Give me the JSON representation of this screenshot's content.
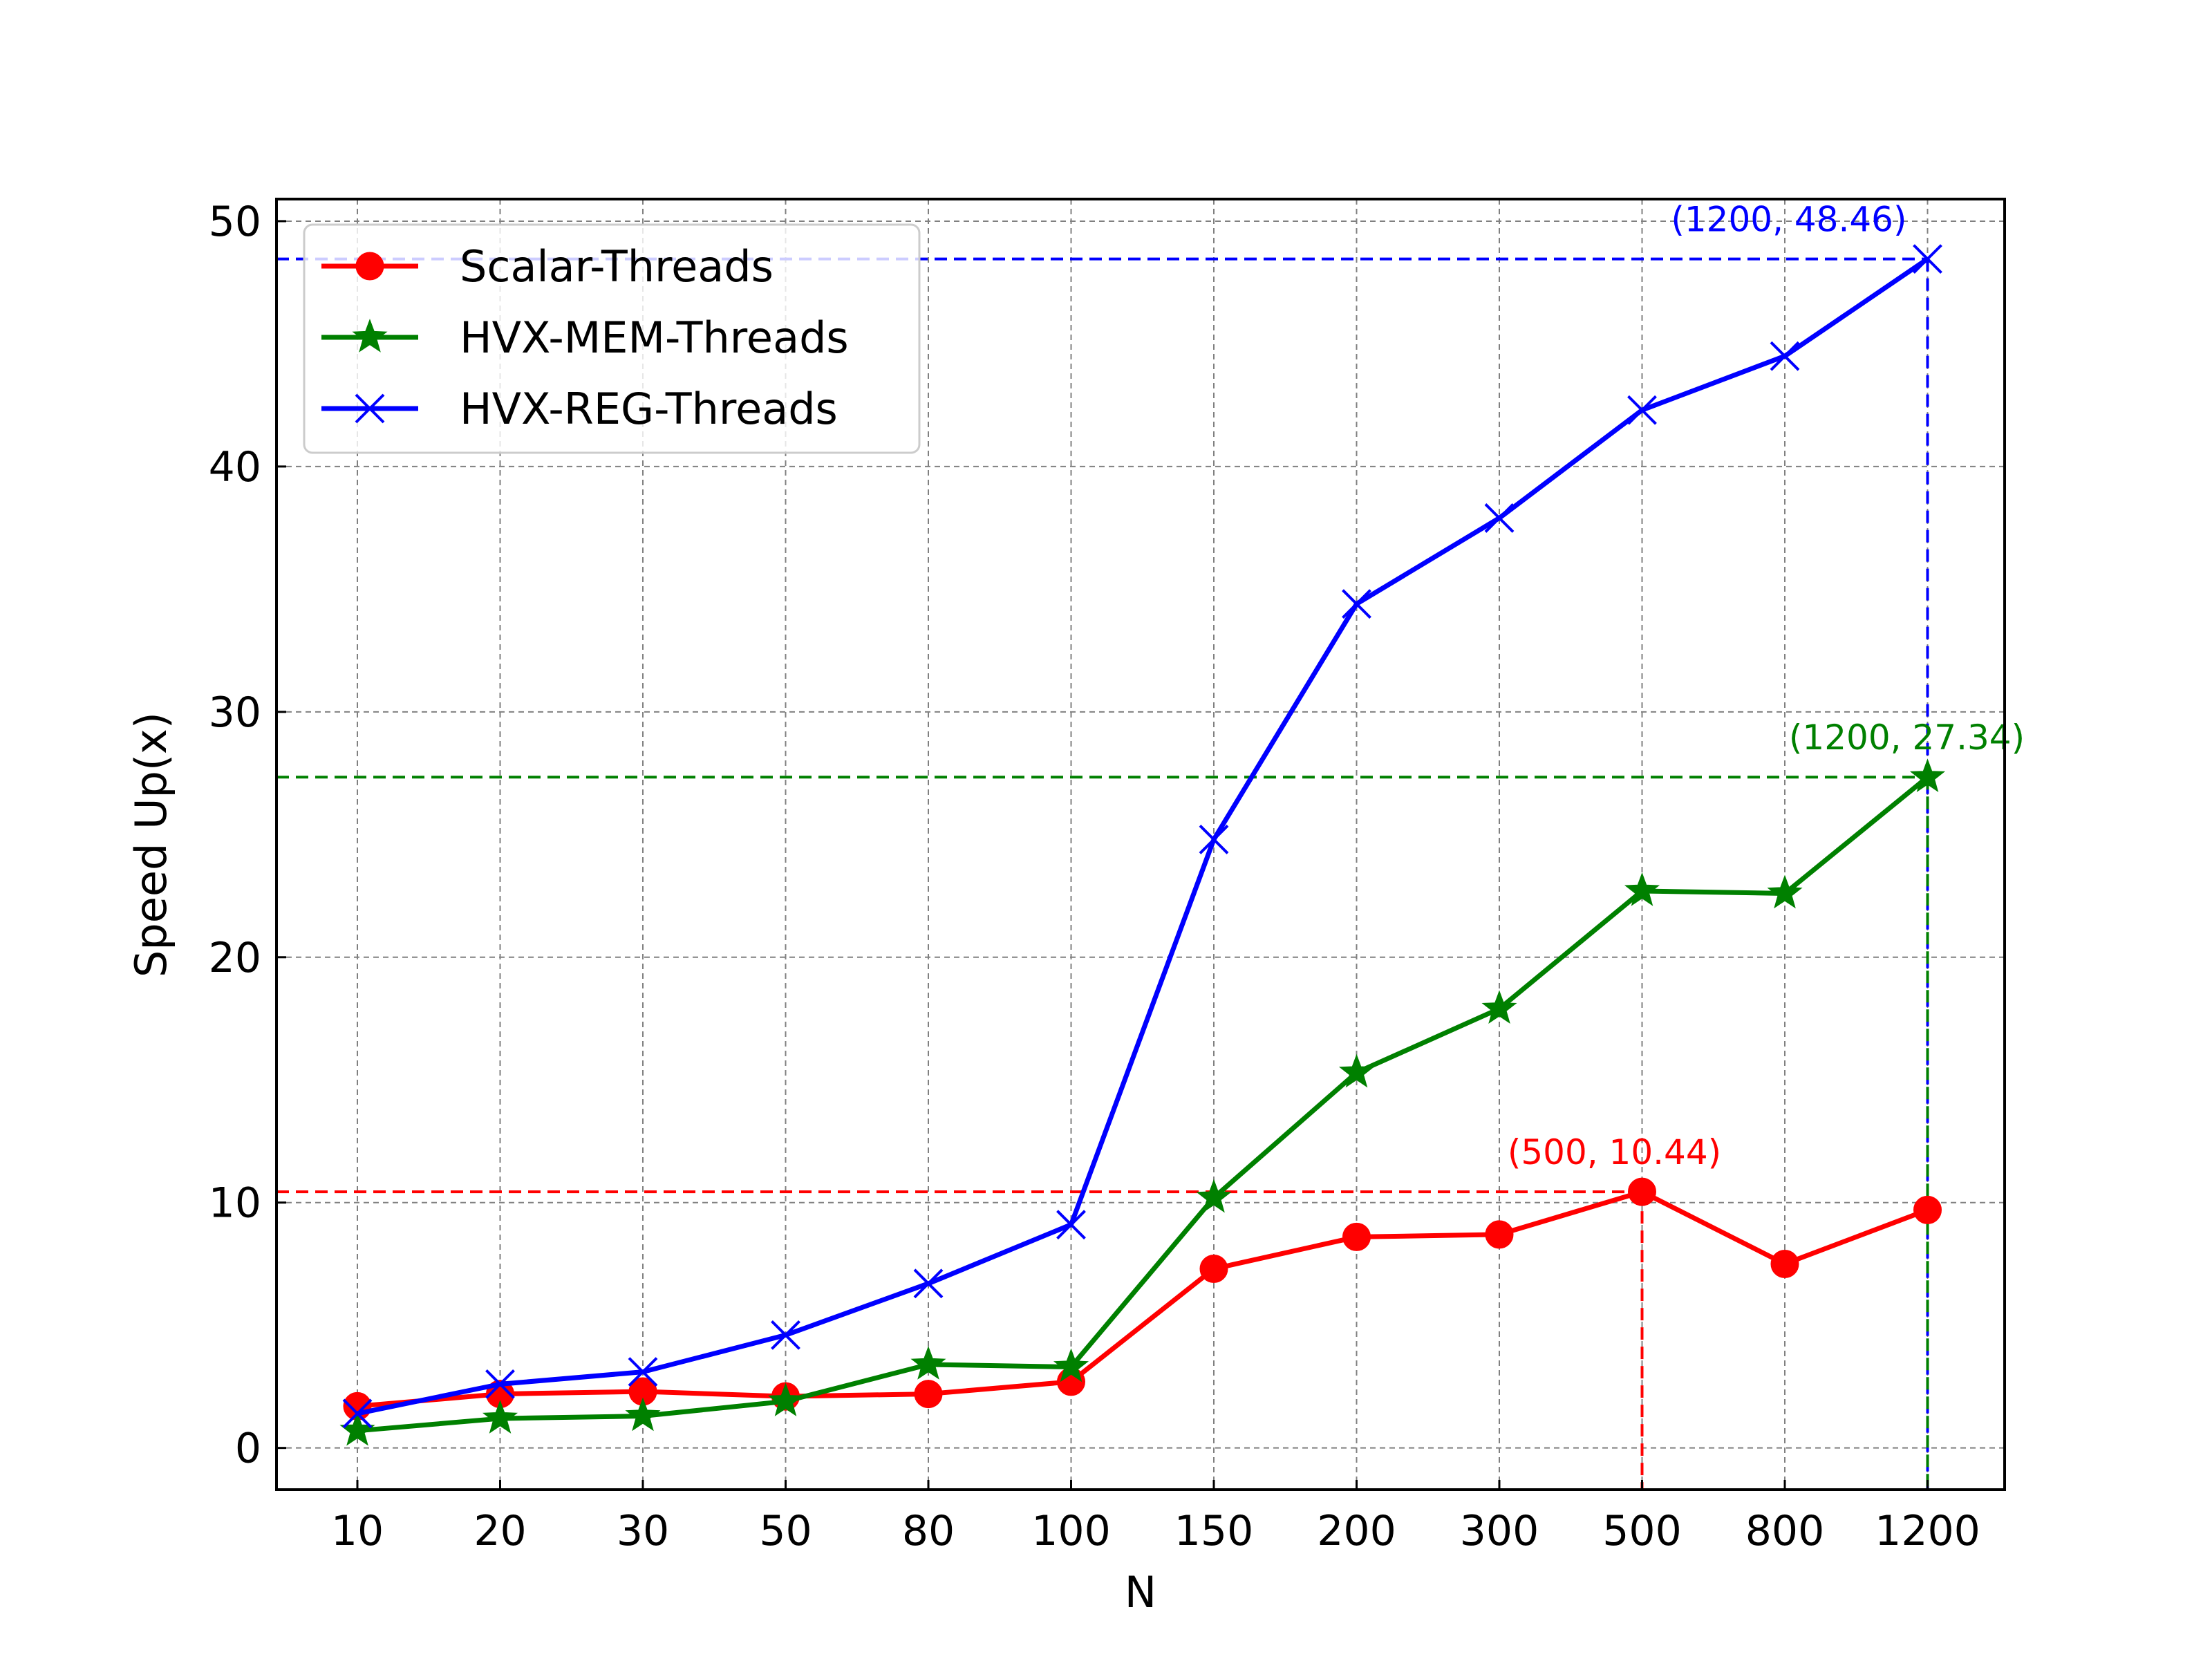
{
  "chart_data": {
    "type": "line",
    "xlabel": "N",
    "ylabel": "Speed Up(x)",
    "categories": [
      "10",
      "20",
      "30",
      "50",
      "80",
      "100",
      "150",
      "200",
      "300",
      "500",
      "800",
      "1200"
    ],
    "ylim": [
      -1.7,
      50.9
    ],
    "yticks": [
      0,
      10,
      20,
      30,
      40,
      50
    ],
    "grid": true,
    "legend_position": "upper-left",
    "series": [
      {
        "name": "Scalar-Threads",
        "color": "#ff0000",
        "marker": "circle",
        "values": [
          1.7,
          2.2,
          2.3,
          2.1,
          2.2,
          2.7,
          7.3,
          8.6,
          8.7,
          10.44,
          7.5,
          9.7
        ]
      },
      {
        "name": "HVX-MEM-Threads",
        "color": "#008000",
        "marker": "star",
        "values": [
          0.7,
          1.2,
          1.3,
          1.9,
          3.4,
          3.3,
          10.2,
          15.3,
          17.9,
          22.7,
          22.6,
          27.34
        ]
      },
      {
        "name": "HVX-REG-Threads",
        "color": "#0000ff",
        "marker": "x",
        "values": [
          1.4,
          2.6,
          3.1,
          4.6,
          6.7,
          9.1,
          24.8,
          34.4,
          37.9,
          42.3,
          44.5,
          48.46
        ]
      }
    ],
    "annotations": [
      {
        "text": "(1200, 48.46)",
        "color": "#0000ff",
        "category_index": 11,
        "value": 48.46,
        "anchor": "end",
        "dx": -30,
        "dy": -40
      },
      {
        "text": "(1200, 27.34)",
        "color": "#008000",
        "category_index": 11,
        "value": 27.34,
        "anchor": "middle",
        "dx": -30,
        "dy": -40
      },
      {
        "text": "(500, 10.44)",
        "color": "#ff0000",
        "category_index": 9,
        "value": 10.44,
        "anchor": "middle",
        "dx": -40,
        "dy": -40
      }
    ],
    "reference_lines": [
      {
        "color": "#0000ff",
        "category_index": 11,
        "value": 48.46
      },
      {
        "color": "#008000",
        "category_index": 11,
        "value": 27.34
      },
      {
        "color": "#ff0000",
        "category_index": 9,
        "value": 10.44
      }
    ]
  }
}
